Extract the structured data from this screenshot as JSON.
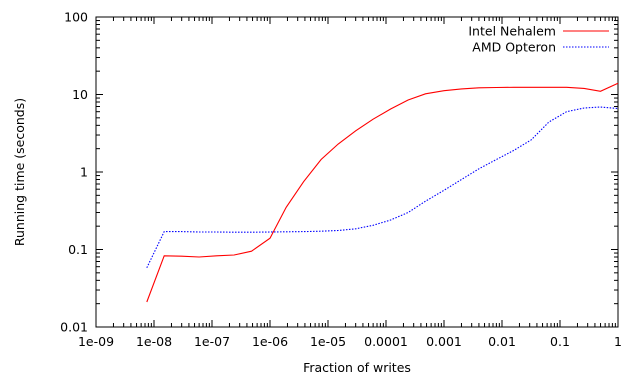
{
  "chart_data": {
    "type": "line",
    "title": "",
    "xlabel": "Fraction of writes",
    "ylabel": "Running time (seconds)",
    "x_scale": "log",
    "y_scale": "log",
    "xlim": [
      1e-09,
      1
    ],
    "ylim": [
      0.01,
      100
    ],
    "x_ticks": [
      {
        "value": 1e-09,
        "label": "1e-09"
      },
      {
        "value": 1e-08,
        "label": "1e-08"
      },
      {
        "value": 1e-07,
        "label": "1e-07"
      },
      {
        "value": 1e-06,
        "label": "1e-06"
      },
      {
        "value": 1e-05,
        "label": "1e-05"
      },
      {
        "value": 0.0001,
        "label": "0.0001"
      },
      {
        "value": 0.001,
        "label": "0.001"
      },
      {
        "value": 0.01,
        "label": "0.01"
      },
      {
        "value": 0.1,
        "label": "0.1"
      },
      {
        "value": 1,
        "label": "1"
      }
    ],
    "y_ticks": [
      {
        "value": 0.01,
        "label": "0.01"
      },
      {
        "value": 0.1,
        "label": "0.1"
      },
      {
        "value": 1,
        "label": "1"
      },
      {
        "value": 10,
        "label": "10"
      },
      {
        "value": 100,
        "label": "100"
      }
    ],
    "grid": false,
    "legend_position": "top-right",
    "series": [
      {
        "name": "Intel Nehalem",
        "color": "#ff0000",
        "dash": "solid",
        "x": [
          7.5e-09,
          1.5e-08,
          3e-08,
          6e-08,
          1.2e-07,
          2.4e-07,
          4.8e-07,
          1e-06,
          1.9e-06,
          3.8e-06,
          7.6e-06,
          1.5e-05,
          3e-05,
          6e-05,
          0.00012,
          0.00024,
          0.00048,
          0.001,
          0.002,
          0.004,
          0.008,
          0.016,
          0.032,
          0.064,
          0.13,
          0.26,
          0.5,
          1
        ],
        "y": [
          0.021,
          0.083,
          0.082,
          0.08,
          0.083,
          0.085,
          0.095,
          0.14,
          0.35,
          0.75,
          1.45,
          2.3,
          3.4,
          4.8,
          6.5,
          8.5,
          10.2,
          11.2,
          11.8,
          12.2,
          12.3,
          12.4,
          12.4,
          12.4,
          12.4,
          12.0,
          11.0,
          14.0
        ]
      },
      {
        "name": "AMD Opteron",
        "color": "#0000ff",
        "dash": "dotted",
        "x": [
          7.5e-09,
          1.5e-08,
          3e-08,
          6e-08,
          1.2e-07,
          2.4e-07,
          4.8e-07,
          1e-06,
          1.9e-06,
          3.8e-06,
          7.6e-06,
          1.5e-05,
          3e-05,
          6e-05,
          0.00012,
          0.00024,
          0.00048,
          0.001,
          0.002,
          0.004,
          0.008,
          0.016,
          0.032,
          0.064,
          0.13,
          0.26,
          0.5,
          1
        ],
        "y": [
          0.058,
          0.17,
          0.17,
          0.168,
          0.168,
          0.167,
          0.167,
          0.168,
          0.169,
          0.17,
          0.172,
          0.176,
          0.185,
          0.205,
          0.24,
          0.3,
          0.42,
          0.58,
          0.8,
          1.1,
          1.45,
          1.9,
          2.6,
          4.4,
          6.0,
          6.7,
          6.9,
          6.6
        ]
      }
    ]
  }
}
